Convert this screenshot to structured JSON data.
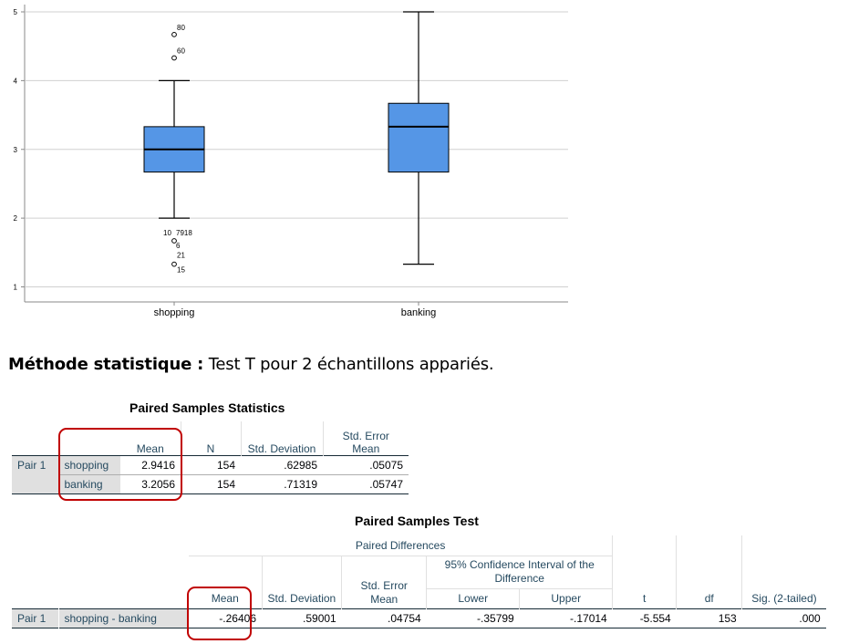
{
  "chart_data": {
    "type": "boxplot",
    "ylim": [
      1,
      5
    ],
    "yticks": [
      "1",
      "2",
      "3",
      "4",
      "5"
    ],
    "categories": [
      "shopping",
      "banking"
    ],
    "box_color": "#5596e6",
    "boxes": [
      {
        "name": "shopping",
        "min": 2.0,
        "q1": 2.67,
        "median": 3.0,
        "q3": 3.33,
        "max": 4.0,
        "outliers": [
          {
            "value": 4.67,
            "label": "80"
          },
          {
            "value": 4.33,
            "label": "60"
          },
          {
            "value": 1.67,
            "label": "10"
          },
          {
            "value": 1.67,
            "label": "7918"
          },
          {
            "value": 1.67,
            "label": "6"
          },
          {
            "value": 1.33,
            "label": "21"
          },
          {
            "value": 1.33,
            "label": "15"
          }
        ]
      },
      {
        "name": "banking",
        "min": 1.33,
        "q1": 2.67,
        "median": 3.33,
        "q3": 3.67,
        "max": 5.0,
        "outliers": []
      }
    ]
  },
  "method": {
    "label": "Méthode statistique :",
    "text": " Test T pour 2 échantillons appariés."
  },
  "stats_table": {
    "title": "Paired Samples Statistics",
    "headers": [
      "Mean",
      "N",
      "Std. Deviation",
      "Std. Error Mean"
    ],
    "pair_label": "Pair 1",
    "rows": [
      {
        "name": "shopping",
        "mean": "2.9416",
        "n": "154",
        "sd": ".62985",
        "se": ".05075"
      },
      {
        "name": "banking",
        "mean": "3.2056",
        "n": "154",
        "sd": ".71319",
        "se": ".05747"
      }
    ]
  },
  "test_table": {
    "title": "Paired Samples Test",
    "group_header": "Paired Differences",
    "ci_header": "95% Confidence Interval of the Difference",
    "headers": {
      "mean": "Mean",
      "sd": "Std. Deviation",
      "se": "Std. Error Mean",
      "lower": "Lower",
      "upper": "Upper",
      "t": "t",
      "df": "df",
      "sig": "Sig. (2-tailed)"
    },
    "row": {
      "pair": "Pair 1",
      "name": "shopping - banking",
      "mean": "-.26406",
      "sd": ".59001",
      "se": ".04754",
      "lower": "-.35799",
      "upper": "-.17014",
      "t": "-5.554",
      "df": "153",
      "sig": ".000"
    }
  },
  "colors": {
    "highlight": "#c00000",
    "header_text": "#264a60",
    "label_bg": "#e0e0e0"
  }
}
